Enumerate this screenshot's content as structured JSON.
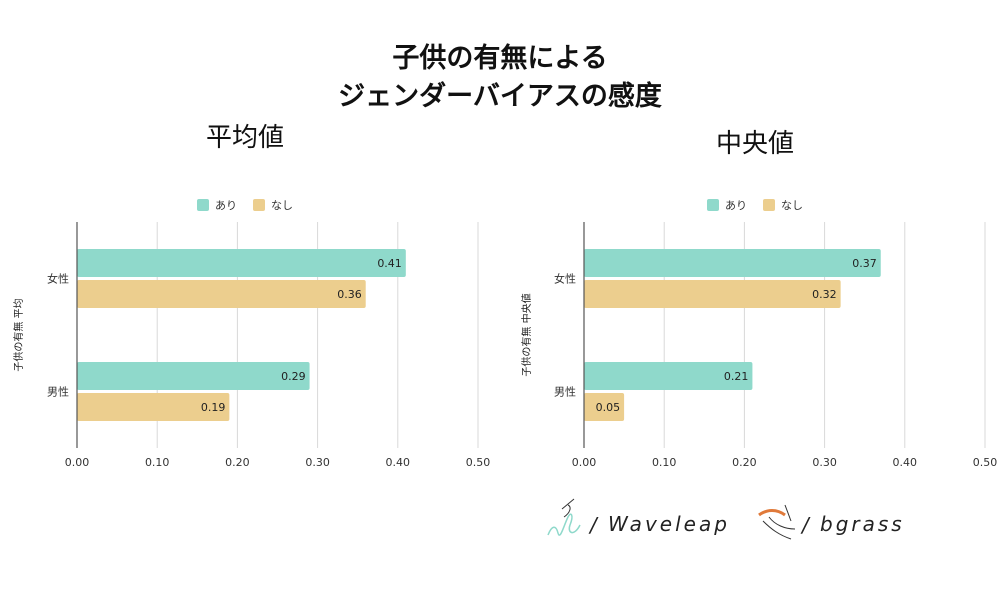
{
  "title": {
    "line1": "子供の有無による",
    "line2": "ジェンダーバイアスの感度"
  },
  "colors": {
    "ari": "#8fd9cb",
    "nashi": "#ecce8e",
    "grid": "#d9d9d9",
    "axis": "#555555",
    "logo_accent": "#e07a3a",
    "logo_teal": "#8fd9cb"
  },
  "logos": {
    "waveleap": "Waveleap",
    "bgrass": "bgrass",
    "slash": "/"
  },
  "chart_data": [
    {
      "type": "bar",
      "orientation": "horizontal",
      "title": "平均値",
      "ylabel": "子供の有無 平均",
      "xlabel": "",
      "categories": [
        "女性",
        "男性"
      ],
      "series": [
        {
          "name": "あり",
          "values": [
            0.41,
            0.29
          ],
          "labels": [
            "0.41",
            "0.29"
          ]
        },
        {
          "name": "なし",
          "values": [
            0.36,
            0.19
          ],
          "labels": [
            "0.36",
            "0.19"
          ]
        }
      ],
      "xlim": [
        0,
        0.5
      ],
      "xticks": [
        "0.00",
        "0.10",
        "0.20",
        "0.30",
        "0.40",
        "0.50"
      ],
      "grid": true,
      "legend": "top-center"
    },
    {
      "type": "bar",
      "orientation": "horizontal",
      "title": "中央値",
      "ylabel": "子供の有無 中央値",
      "xlabel": "",
      "categories": [
        "女性",
        "男性"
      ],
      "series": [
        {
          "name": "あり",
          "values": [
            0.37,
            0.21
          ],
          "labels": [
            "0.37",
            "0.21"
          ]
        },
        {
          "name": "なし",
          "values": [
            0.32,
            0.05
          ],
          "labels": [
            "0.32",
            "0.05"
          ]
        }
      ],
      "xlim": [
        0,
        0.5
      ],
      "xticks": [
        "0.00",
        "0.10",
        "0.20",
        "0.30",
        "0.40",
        "0.50"
      ],
      "grid": true,
      "legend": "top-center"
    }
  ]
}
